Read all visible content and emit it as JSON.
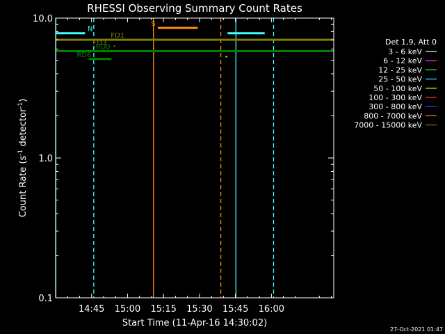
{
  "chart_data": {
    "type": "line",
    "title": "RHESSI Observing Summary Count Rates",
    "xlabel": "Start Time (11-Apr-16 14:30:02)",
    "ylabel": "Count Rate (s",
    "ylabel_sup1": "-1",
    "ylabel_mid": " detector",
    "ylabel_sup2": "-1",
    "ylabel_end": ")",
    "yscale": "log",
    "ylim": [
      0.1,
      10.0
    ],
    "xlim_min_after_1430": [
      0,
      116
    ],
    "x_ticks": [
      {
        "label": "14:45",
        "min": 15
      },
      {
        "label": "15:00",
        "min": 30
      },
      {
        "label": "15:15",
        "min": 45
      },
      {
        "label": "15:30",
        "min": 60
      },
      {
        "label": "15:45",
        "min": 75
      },
      {
        "label": "16:00",
        "min": 90
      }
    ],
    "y_ticks": [
      {
        "label": "10.0",
        "value": 10.0
      },
      {
        "label": "1.0",
        "value": 1.0
      },
      {
        "label": "0.1",
        "value": 0.1
      }
    ],
    "legend": {
      "placement": "right",
      "header": "Det 1,9, Att 0",
      "entries": [
        {
          "label": "3 - 6 keV",
          "color": "#ffffff"
        },
        {
          "label": "6 - 12 keV",
          "color": "#ff40ff"
        },
        {
          "label": "12 - 25 keV",
          "color": "#40ff40"
        },
        {
          "label": "25 - 50 keV",
          "color": "#40ffff"
        },
        {
          "label": "50 - 100 keV",
          "color": "#ffff40"
        },
        {
          "label": "100 - 300 keV",
          "color": "#ff4040"
        },
        {
          "label": "300 - 800 keV",
          "color": "#4040ff"
        },
        {
          "label": "800 - 7000 keV",
          "color": "#ff8c00"
        },
        {
          "label": "7000 - 15000 keV",
          "color": "#808000"
        }
      ]
    },
    "bars": [
      {
        "label": "N",
        "color": "#40ffff",
        "y": 7.8,
        "segments": [
          [
            0,
            12.3
          ],
          [
            71.7,
            87.2
          ]
        ],
        "label_min": 13.3
      },
      {
        "label": "S",
        "color": "#ff8c00",
        "y": 8.5,
        "segments": [
          [
            42.6,
            59.3
          ]
        ],
        "label_min": 39.8
      },
      {
        "label": "FD1",
        "color": "#808000",
        "y": 7.0,
        "segments": [
          [
            0,
            116
          ]
        ],
        "label_min": 23.0
      },
      {
        "label": "FD3",
        "color": "#808000",
        "y": 6.2,
        "segments": [],
        "label_min": 15.5
      },
      {
        "label": "RD0",
        "color": "#008000",
        "y": 5.8,
        "segments": [
          [
            0,
            116
          ]
        ],
        "label_min": 16.7
      },
      {
        "label": "RD6",
        "color": "#008000",
        "y": 5.1,
        "segments": [
          [
            13.8,
            23.3
          ]
        ],
        "label_min": 8.8
      }
    ],
    "dots": [
      {
        "color": "#808000",
        "min": 24.5,
        "y": 6.3
      },
      {
        "color": "#ffffff",
        "min": 71.2,
        "y": 5.3
      }
    ],
    "vlines": [
      {
        "color": "#40ffff",
        "min": 0.1,
        "style": "solid"
      },
      {
        "color": "#40ffff",
        "min": 15.9,
        "style": "dashed"
      },
      {
        "color": "#ff8c00",
        "min": 40.8,
        "style": "solid"
      },
      {
        "color": "#ff8c00",
        "min": 68.9,
        "style": "dashed"
      },
      {
        "color": "#40ffff",
        "min": 75.2,
        "style": "solid"
      },
      {
        "color": "#40ffff",
        "min": 90.9,
        "style": "dashed"
      }
    ]
  },
  "footer_date": "27-Oct-2021 01:47"
}
